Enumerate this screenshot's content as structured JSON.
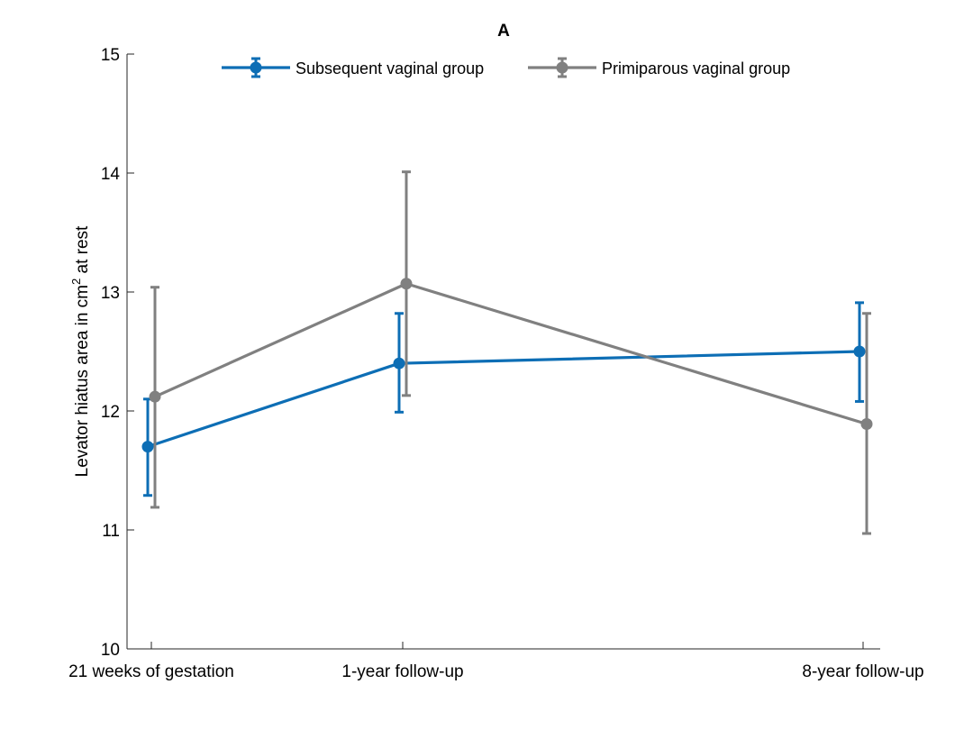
{
  "chart_data": {
    "type": "line",
    "title": "A",
    "xlabel": "",
    "ylabel": "Levator hiatus area in cm",
    "ylabel_sup": "2",
    "ylabel_suffix": " at rest",
    "categories": [
      "21 weeks of gestation",
      "1-year follow-up",
      "8-year follow-up"
    ],
    "x": [
      0,
      1,
      2.83
    ],
    "ylim": [
      10,
      15
    ],
    "yticks": [
      10,
      11,
      12,
      13,
      14,
      15
    ],
    "legend_position": "top",
    "grid": false,
    "series": [
      {
        "name": "Subsequent vaginal group",
        "color": "#0d6eb5",
        "values": [
          11.7,
          12.4,
          12.5
        ],
        "err_low": [
          11.29,
          11.99,
          12.08
        ],
        "err_high": [
          12.1,
          12.82,
          12.91
        ]
      },
      {
        "name": "Primiparous vaginal group",
        "color": "#808080",
        "values": [
          12.12,
          13.07,
          11.89
        ],
        "err_low": [
          11.19,
          12.13,
          10.97
        ],
        "err_high": [
          13.04,
          14.01,
          12.82
        ]
      }
    ]
  }
}
